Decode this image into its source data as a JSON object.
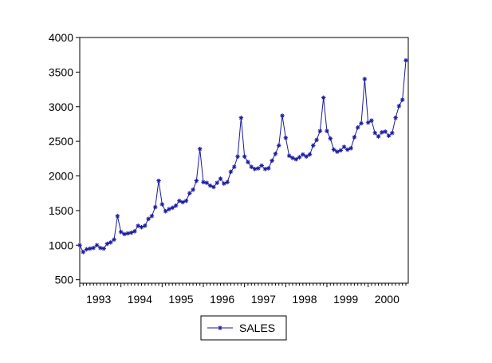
{
  "chart_data": {
    "type": "line",
    "title": "",
    "xlabel": "",
    "ylabel": "",
    "x_tick_labels": [
      "1993",
      "1994",
      "1995",
      "1996",
      "1997",
      "1998",
      "1999",
      "2000"
    ],
    "y_ticks": [
      500,
      1000,
      1500,
      2000,
      2500,
      3000,
      3500,
      4000
    ],
    "y_tick_labels": [
      "500",
      "1000",
      "1500",
      "2000",
      "2500",
      "3000",
      "3500",
      "4000"
    ],
    "ylim": [
      450,
      4000
    ],
    "xlim": [
      "1993-01",
      "2000-12"
    ],
    "grid": false,
    "legend_position": "bottom-center",
    "series": [
      {
        "name": "SALES",
        "color": "#1a1a9e",
        "marker": "asterisk",
        "x": [
          "1993-01",
          "1993-02",
          "1993-03",
          "1993-04",
          "1993-05",
          "1993-06",
          "1993-07",
          "1993-08",
          "1993-09",
          "1993-10",
          "1993-11",
          "1993-12",
          "1994-01",
          "1994-02",
          "1994-03",
          "1994-04",
          "1994-05",
          "1994-06",
          "1994-07",
          "1994-08",
          "1994-09",
          "1994-10",
          "1994-11",
          "1994-12",
          "1995-01",
          "1995-02",
          "1995-03",
          "1995-04",
          "1995-05",
          "1995-06",
          "1995-07",
          "1995-08",
          "1995-09",
          "1995-10",
          "1995-11",
          "1995-12",
          "1996-01",
          "1996-02",
          "1996-03",
          "1996-04",
          "1996-05",
          "1996-06",
          "1996-07",
          "1996-08",
          "1996-09",
          "1996-10",
          "1996-11",
          "1996-12",
          "1997-01",
          "1997-02",
          "1997-03",
          "1997-04",
          "1997-05",
          "1997-06",
          "1997-07",
          "1997-08",
          "1997-09",
          "1997-10",
          "1997-11",
          "1997-12",
          "1998-01",
          "1998-02",
          "1998-03",
          "1998-04",
          "1998-05",
          "1998-06",
          "1998-07",
          "1998-08",
          "1998-09",
          "1998-10",
          "1998-11",
          "1998-12",
          "1999-01",
          "1999-02",
          "1999-03",
          "1999-04",
          "1999-05",
          "1999-06",
          "1999-07",
          "1999-08",
          "1999-09",
          "1999-10",
          "1999-11",
          "1999-12",
          "2000-01",
          "2000-02",
          "2000-03",
          "2000-04",
          "2000-05",
          "2000-06",
          "2000-07",
          "2000-08",
          "2000-09",
          "2000-10",
          "2000-11",
          "2000-12"
        ],
        "values": [
          1000,
          900,
          940,
          950,
          960,
          1000,
          960,
          950,
          1020,
          1040,
          1080,
          1420,
          1190,
          1160,
          1170,
          1180,
          1200,
          1280,
          1260,
          1280,
          1380,
          1420,
          1550,
          1930,
          1590,
          1490,
          1520,
          1540,
          1570,
          1640,
          1620,
          1640,
          1750,
          1800,
          1930,
          2390,
          1910,
          1900,
          1860,
          1840,
          1900,
          1960,
          1890,
          1910,
          2060,
          2130,
          2280,
          2840,
          2280,
          2200,
          2130,
          2100,
          2110,
          2150,
          2100,
          2110,
          2220,
          2320,
          2440,
          2870,
          2550,
          2290,
          2260,
          2240,
          2270,
          2310,
          2280,
          2310,
          2440,
          2520,
          2650,
          3130,
          2650,
          2540,
          2380,
          2350,
          2370,
          2420,
          2380,
          2400,
          2560,
          2700,
          2760,
          3400,
          2770,
          2800,
          2620,
          2570,
          2630,
          2640,
          2580,
          2620,
          2840,
          3010,
          3100,
          3670
        ]
      }
    ]
  }
}
